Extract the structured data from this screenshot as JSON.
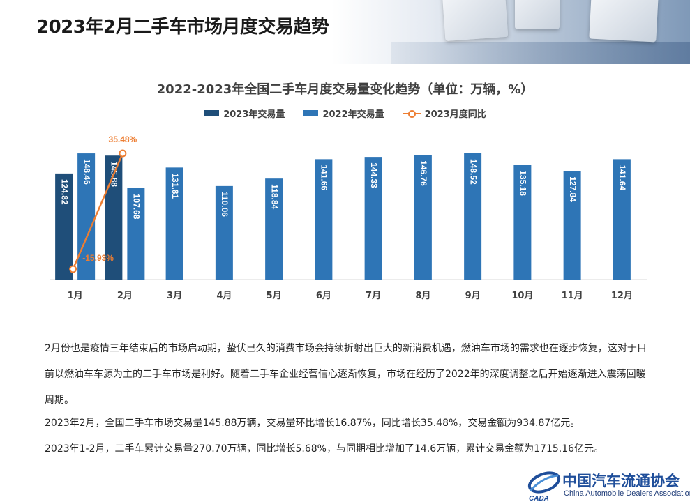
{
  "page": {
    "title": "2023年2月二手车市场月度交易趋势"
  },
  "chart_data": {
    "type": "bar",
    "title": "2022-2023年全国二手车月度交易量变化趋势（单位：万辆，%）",
    "categories": [
      "1月",
      "2月",
      "3月",
      "4月",
      "5月",
      "6月",
      "7月",
      "8月",
      "9月",
      "10月",
      "11月",
      "12月"
    ],
    "series": [
      {
        "name": "2023年交易量",
        "type": "bar",
        "color": "#1f4e79",
        "values": [
          124.82,
          145.88,
          null,
          null,
          null,
          null,
          null,
          null,
          null,
          null,
          null,
          null
        ]
      },
      {
        "name": "2022年交易量",
        "type": "bar",
        "color": "#2e75b6",
        "values": [
          148.46,
          107.68,
          131.81,
          110.06,
          118.84,
          141.66,
          144.33,
          146.76,
          148.52,
          135.18,
          127.84,
          141.64
        ]
      },
      {
        "name": "2023月度同比",
        "type": "line",
        "color": "#ed7d31",
        "values": [
          -15.93,
          35.48,
          null,
          null,
          null,
          null,
          null,
          null,
          null,
          null,
          null,
          null
        ],
        "labels": [
          "-15.93%",
          "35.48%"
        ]
      }
    ],
    "grid": false,
    "legend_position": "top"
  },
  "text": {
    "p1": "2月份也是疫情三年结束后的市场启动期，蛰伏已久的消费市场会持续折射出巨大的新消费机遇，燃油车市场的需求也在逐步恢复，这对于目前以燃油车车源为主的二手车市场是利好。随着二手车企业经营信心逐渐恢复，市场在经历了2022年的深度调整之后开始逐渐进入震荡回暖周期。",
    "p2": "2023年2月，全国二手车市场交易量145.88万辆，交易量环比增长16.87%，同比增长35.48%，交易金额为934.87亿元。",
    "p3": "2023年1-2月，二手车累计交易量270.70万辆，同比增长5.68%，与同期相比增加了14.6万辆，累计交易金额为1715.16亿元。"
  },
  "logo": {
    "name_cn": "中国汽车流通协会",
    "name_en": "China Automobile Dealers Association",
    "mark_text": "CADA"
  }
}
